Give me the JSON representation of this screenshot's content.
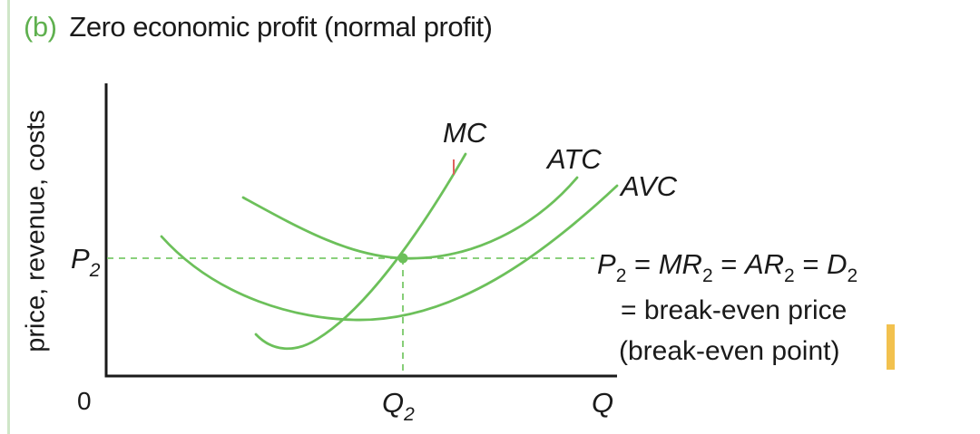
{
  "panel": {
    "part_label": "(b)",
    "title": "Zero economic profit (normal profit)"
  },
  "axes": {
    "y_label": "price, revenue, costs",
    "x_label": "Q",
    "origin": "0"
  },
  "price_level": {
    "symbol": "P",
    "sub": "2"
  },
  "quantity_level": {
    "symbol": "Q",
    "sub": "2"
  },
  "curves": {
    "mc": "MC",
    "atc": "ATC",
    "avc": "AVC"
  },
  "annotation": {
    "line1": {
      "p": "P",
      "p_sub": "2",
      "eq1": " = ",
      "mr": "MR",
      "mr_sub": "2",
      "eq2": " = ",
      "ar": "AR",
      "ar_sub": "2",
      "eq3": " = ",
      "d": "D",
      "d_sub": "2"
    },
    "line2": "= break-even price",
    "line3": "(break-even point)"
  },
  "colors": {
    "curve": "#6cc05a",
    "dashed": "#7ac96a",
    "axis": "#1a1a1a",
    "part_label": "#5fb04f",
    "highlight": "#f2c14e",
    "tick_red": "#e06060"
  }
}
